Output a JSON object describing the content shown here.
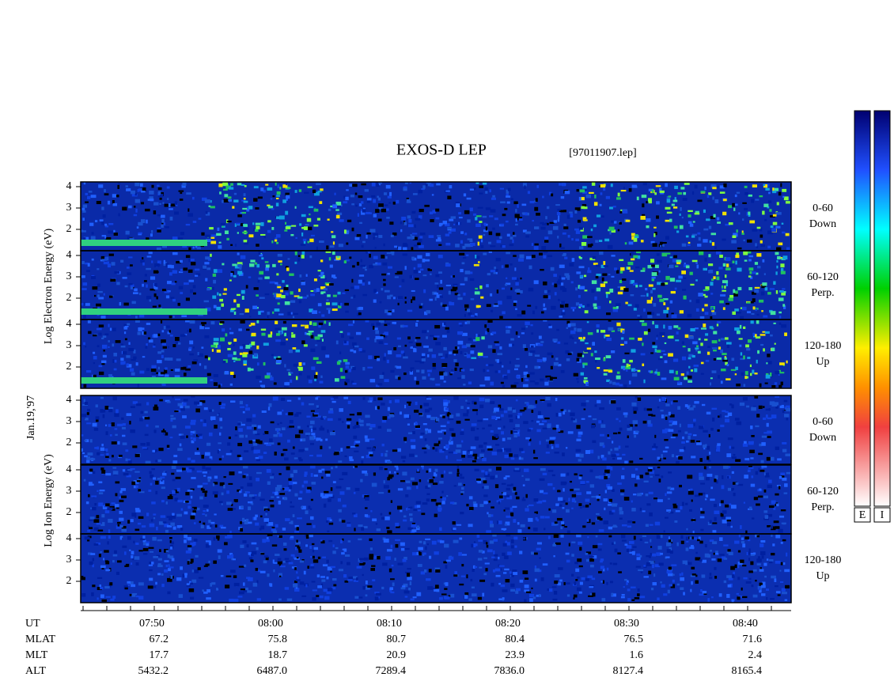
{
  "title": "EXOS-D LEP",
  "file": "[97011907.lep]",
  "date": "Jan.19,'97",
  "electron_axis_label": "Log Electron Energy (eV)",
  "ion_axis_label": "Log Ion Energy (eV)",
  "panels": [
    {
      "ticks": [
        "4",
        "3",
        "2"
      ],
      "label_line1": "0-60",
      "label_line2": "Down"
    },
    {
      "ticks": [
        "4",
        "3",
        "2"
      ],
      "label_line1": "60-120",
      "label_line2": "Perp."
    },
    {
      "ticks": [
        "4",
        "3",
        "2"
      ],
      "label_line1": "120-180",
      "label_line2": "Up"
    },
    {
      "ticks": [
        "4",
        "3",
        "2"
      ],
      "label_line1": "0-60",
      "label_line2": "Down"
    },
    {
      "ticks": [
        "4",
        "3",
        "2"
      ],
      "label_line1": "60-120",
      "label_line2": "Perp."
    },
    {
      "ticks": [
        "4",
        "3",
        "2"
      ],
      "label_line1": "120-180",
      "label_line2": "Up"
    }
  ],
  "colorbar_labels": [
    "E",
    "I"
  ],
  "table": {
    "row_labels": [
      "UT",
      "MLAT",
      "MLT",
      "ALT"
    ],
    "columns": [
      [
        "07:50",
        "67.2",
        "17.7",
        "5432.2"
      ],
      [
        "08:00",
        "75.8",
        "18.7",
        "6487.0"
      ],
      [
        "08:10",
        "80.7",
        "20.9",
        "7289.4"
      ],
      [
        "08:20",
        "80.4",
        "23.9",
        "7836.0"
      ],
      [
        "08:30",
        "76.5",
        "1.6",
        "8127.4"
      ],
      [
        "08:40",
        "71.6",
        "2.4",
        "8165.4"
      ]
    ]
  }
}
